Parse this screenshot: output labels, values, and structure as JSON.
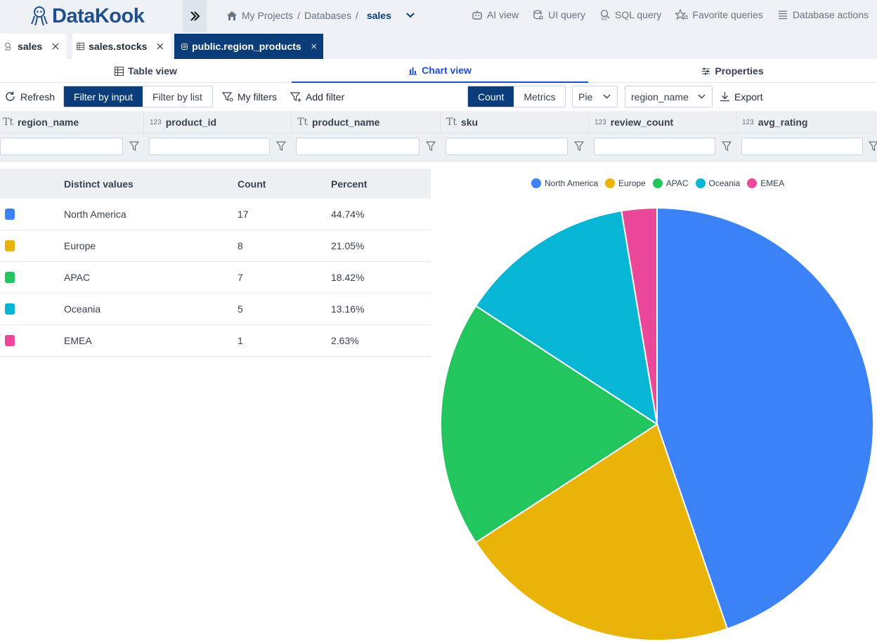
{
  "app": {
    "name": "DataKook"
  },
  "breadcrumb": {
    "projects": "My Projects",
    "sep1": "/",
    "databases": "Databases",
    "sep2": "/",
    "current": "sales"
  },
  "header_actions": [
    {
      "label": "AI view",
      "icon": "robot-icon"
    },
    {
      "label": "UI query",
      "icon": "database-search-icon"
    },
    {
      "label": "SQL query",
      "icon": "sql-search-icon"
    },
    {
      "label": "Favorite queries",
      "icon": "star-list-icon"
    },
    {
      "label": "Database actions",
      "icon": "menu-lines-icon"
    }
  ],
  "tabs": [
    {
      "label": "sales",
      "icon": "sql-file-icon"
    },
    {
      "label": "sales.stocks",
      "icon": "table-icon"
    },
    {
      "label": "public.region_products",
      "icon": "view-eye-icon",
      "active": true
    }
  ],
  "view_tabs": [
    {
      "label": "Table view"
    },
    {
      "label": "Chart view",
      "active": true
    },
    {
      "label": "Properties"
    }
  ],
  "toolbar": {
    "refresh": "Refresh",
    "filter_by_input": "Filter by input",
    "filter_by_list": "Filter by list",
    "my_filters": "My filters",
    "add_filter": "Add filter",
    "count": "Count",
    "metrics": "Metrics",
    "chart_type": "Pie",
    "group_column": "region_name",
    "export": "Export"
  },
  "columns": [
    {
      "name": "region_name",
      "type": "Tt"
    },
    {
      "name": "product_id",
      "type": "123"
    },
    {
      "name": "product_name",
      "type": "Tt"
    },
    {
      "name": "sku",
      "type": "Tt"
    },
    {
      "name": "review_count",
      "type": "123"
    },
    {
      "name": "avg_rating",
      "type": "123"
    }
  ],
  "distinct_table": {
    "headers": [
      "Distinct values",
      "Count",
      "Percent"
    ],
    "rows": [
      {
        "value": "North America",
        "count": "17",
        "percent": "44.74%",
        "color": "#3b82f6"
      },
      {
        "value": "Europe",
        "count": "8",
        "percent": "21.05%",
        "color": "#eab308"
      },
      {
        "value": "APAC",
        "count": "7",
        "percent": "18.42%",
        "color": "#22c55e"
      },
      {
        "value": "Oceania",
        "count": "5",
        "percent": "13.16%",
        "color": "#06b6d4"
      },
      {
        "value": "EMEA",
        "count": "1",
        "percent": "2.63%",
        "color": "#ec4899"
      }
    ]
  },
  "chart_data": {
    "type": "pie",
    "title": "",
    "legend_position": "top",
    "categories": [
      "North America",
      "Europe",
      "APAC",
      "Oceania",
      "EMEA"
    ],
    "values": [
      17,
      8,
      7,
      5,
      1
    ],
    "colors": [
      "#3b82f6",
      "#eab308",
      "#22c55e",
      "#06b6d4",
      "#ec4899"
    ]
  }
}
